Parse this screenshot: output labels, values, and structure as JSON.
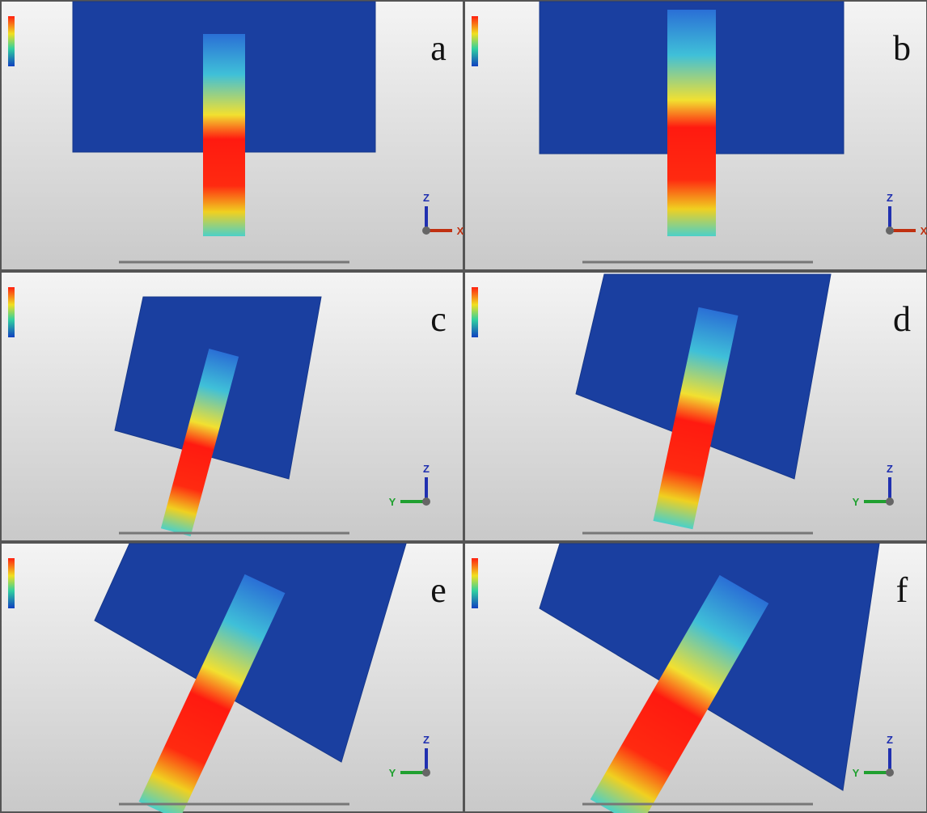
{
  "panels": [
    {
      "label": "a",
      "axes": [
        "Z",
        "X"
      ]
    },
    {
      "label": "b",
      "axes": [
        "Z",
        "X"
      ]
    },
    {
      "label": "c",
      "axes": [
        "Z",
        "Y"
      ]
    },
    {
      "label": "d",
      "axes": [
        "Z",
        "Y"
      ]
    },
    {
      "label": "e",
      "axes": [
        "Z",
        "Y"
      ]
    },
    {
      "label": "f",
      "axes": [
        "Z",
        "Y"
      ]
    }
  ]
}
